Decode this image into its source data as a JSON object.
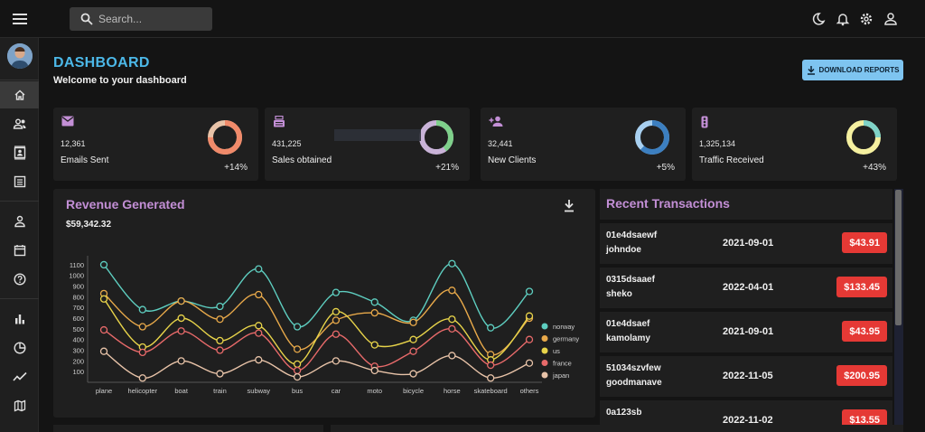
{
  "search": {
    "placeholder": "Search..."
  },
  "header": {
    "title": "DASHBOARD",
    "subtitle": "Welcome to your dashboard",
    "download_label": "DOWNLOAD REPORTS"
  },
  "stats": [
    {
      "value": "12,361",
      "label": "Emails Sent",
      "percent": "+14%",
      "progress": 0.75,
      "icon": "email-icon",
      "ring_color": "#f08a6a",
      "ring_track": "#e8c3a8"
    },
    {
      "value": "431,225",
      "label": "Sales obtained",
      "percent": "+21%",
      "progress": 0.4,
      "icon": "point-of-sale-icon",
      "ring_color": "#7ed08a",
      "ring_track": "#c9b3d8"
    },
    {
      "value": "32,441",
      "label": "New Clients",
      "percent": "+5%",
      "progress": 0.62,
      "icon": "person-add-icon",
      "ring_color": "#3c7fc0",
      "ring_track": "#a8d0f0"
    },
    {
      "value": "1,325,134",
      "label": "Traffic Received",
      "percent": "+43%",
      "progress": 0.25,
      "icon": "traffic-icon",
      "ring_color": "#7fd3c8",
      "ring_track": "#f5f0a0"
    }
  ],
  "revenue": {
    "title": "Revenue Generated",
    "total": "$59,342.32"
  },
  "chart_data": {
    "type": "line",
    "categories": [
      "plane",
      "helicopter",
      "boat",
      "train",
      "subway",
      "bus",
      "car",
      "moto",
      "bicycle",
      "horse",
      "skateboard",
      "others"
    ],
    "ylim": [
      0,
      1150
    ],
    "yticks": [
      100,
      200,
      300,
      400,
      500,
      600,
      700,
      800,
      900,
      1000,
      1100
    ],
    "legend": "right",
    "series": [
      {
        "name": "norway",
        "color": "#5ecec0",
        "values": [
          1100,
          680,
          760,
          710,
          1060,
          520,
          840,
          750,
          580,
          1110,
          510,
          850
        ]
      },
      {
        "name": "germany",
        "color": "#e8a94a",
        "values": [
          830,
          520,
          760,
          590,
          820,
          310,
          580,
          650,
          560,
          860,
          260,
          600
        ]
      },
      {
        "name": "us",
        "color": "#e8d44a",
        "values": [
          780,
          330,
          600,
          390,
          530,
          170,
          660,
          350,
          400,
          590,
          210,
          620
        ]
      },
      {
        "name": "france",
        "color": "#e86a6a",
        "values": [
          490,
          280,
          480,
          300,
          460,
          110,
          450,
          150,
          290,
          500,
          160,
          400
        ]
      },
      {
        "name": "japan",
        "color": "#e8c3a8",
        "values": [
          290,
          40,
          200,
          80,
          210,
          50,
          200,
          110,
          80,
          250,
          40,
          180
        ]
      }
    ]
  },
  "transactions": {
    "title": "Recent Transactions",
    "rows": [
      {
        "id": "01e4dsaewf",
        "user": "johndoe",
        "date": "2021-09-01",
        "amount": "$43.91"
      },
      {
        "id": "0315dsaaef",
        "user": "sheko",
        "date": "2022-04-01",
        "amount": "$133.45"
      },
      {
        "id": "01e4dsaef",
        "user": "kamolamy",
        "date": "2021-09-01",
        "amount": "$43.95"
      },
      {
        "id": "51034szvfew",
        "user": "goodmanave",
        "date": "2022-11-05",
        "amount": "$200.95"
      },
      {
        "id": "0a123sb",
        "user": "",
        "date": "2022-11-02",
        "amount": "$13.55"
      }
    ]
  }
}
